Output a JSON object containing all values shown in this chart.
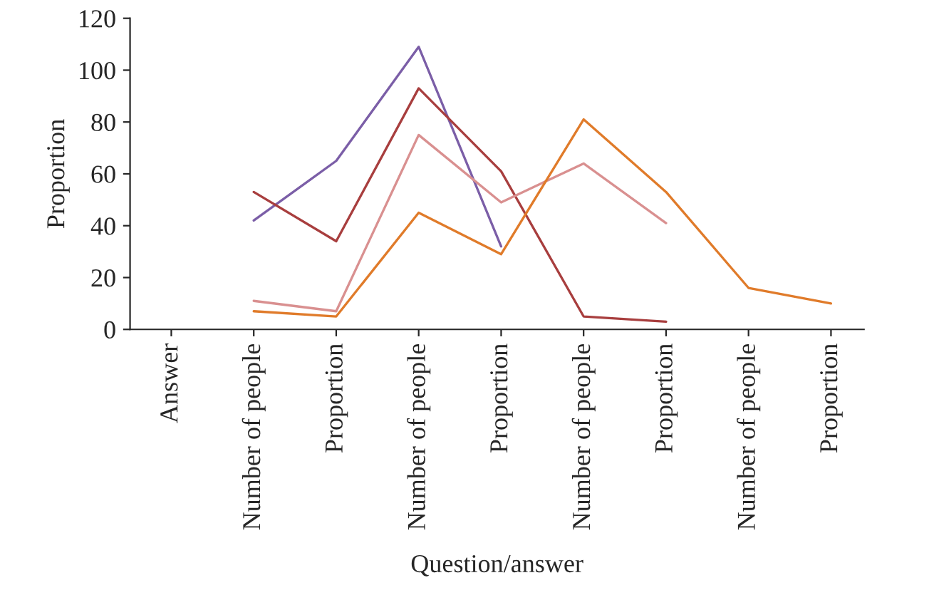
{
  "chart_data": {
    "type": "line",
    "xlabel": "Question/answer",
    "ylabel": "Proportion",
    "categories": [
      "Answer",
      "Number of people",
      "Proportion",
      "Number of people",
      "Proportion",
      "Number of people",
      "Proportion",
      "Number of people",
      "Proportion"
    ],
    "series": [
      {
        "color": "#7b5ea7",
        "values": [
          null,
          42,
          65,
          109,
          32,
          null,
          null,
          null,
          null
        ]
      },
      {
        "color": "#a83e3e",
        "values": [
          null,
          53,
          34,
          93,
          61,
          5,
          3,
          null,
          null
        ]
      },
      {
        "color": "#d99090",
        "values": [
          null,
          11,
          7,
          75,
          49,
          64,
          41,
          null,
          null
        ]
      },
      {
        "color": "#e07b2a",
        "values": [
          null,
          7,
          5,
          45,
          29,
          81,
          53,
          16,
          10
        ]
      }
    ],
    "ylim": [
      0,
      120
    ],
    "yticks": [
      0,
      20,
      40,
      60,
      80,
      100,
      120
    ],
    "grid": false,
    "legend": false
  }
}
